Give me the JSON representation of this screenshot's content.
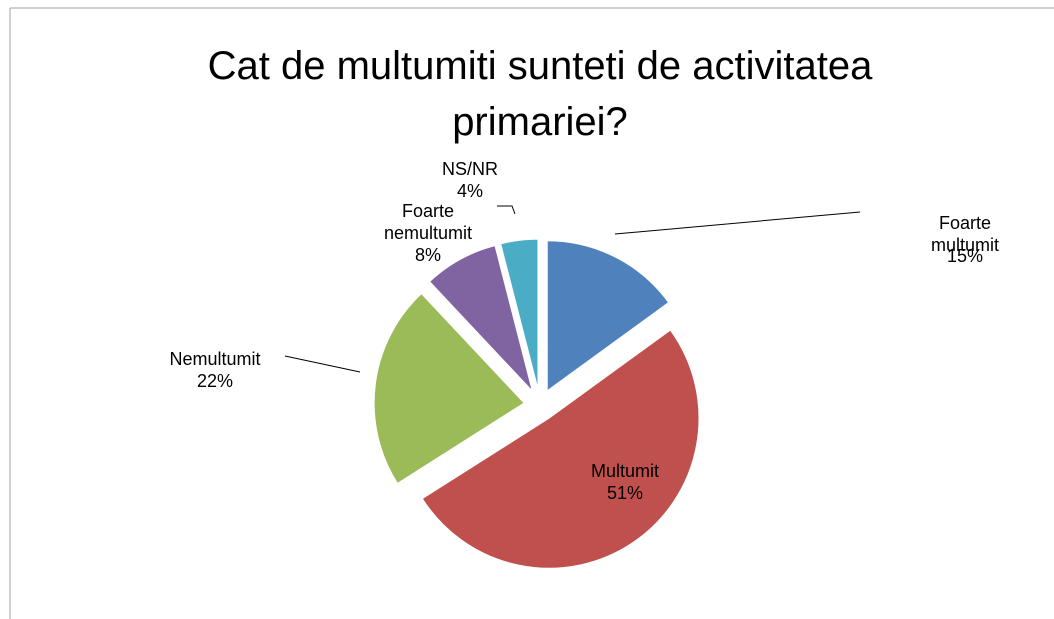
{
  "chart_data": {
    "type": "pie",
    "title": "Cat de multumiti sunteti de activitatea primariei?",
    "categories": [
      "Foarte multumit",
      "Multumit",
      "Nemultumit",
      "Foarte nemultumit",
      "NS/NR"
    ],
    "values": [
      15,
      51,
      22,
      8,
      4
    ],
    "value_labels": [
      "15%",
      "51%",
      "22%",
      "8%",
      "4%"
    ],
    "colors": [
      "#4f81bd",
      "#c0504d",
      "#9bbb59",
      "#8064a2",
      "#4bacc6"
    ]
  }
}
